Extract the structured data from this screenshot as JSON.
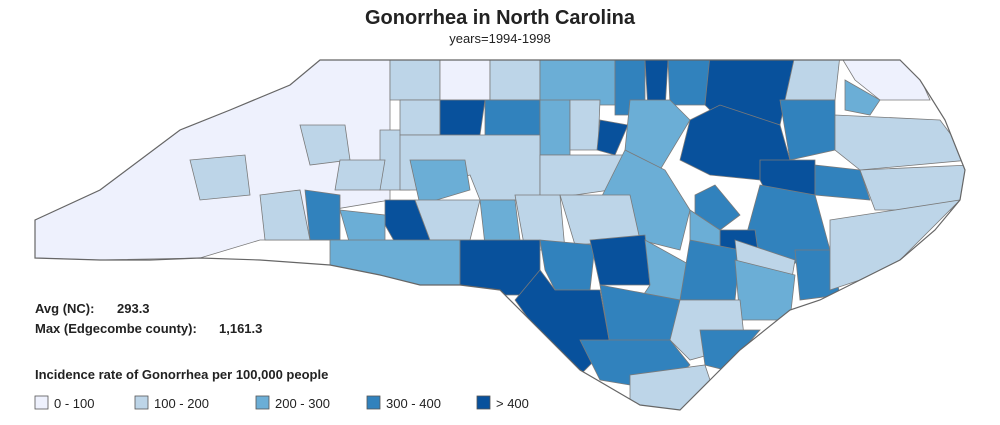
{
  "header": {
    "title": "Gonorrhea in North Carolina",
    "subtitle": "years=1994-1998"
  },
  "stats": {
    "avg_label": "Avg (NC):",
    "avg_value": 293.3,
    "max_label": "Max (Edgecombe county):",
    "max_value": {
      "value": 1161.3,
      "label": "1,161.3"
    }
  },
  "legend": {
    "title": "Incidence rate of Gonorrhea per 100,000 people",
    "items": [
      {
        "label": "0 - 100",
        "color": "#eef1fd"
      },
      {
        "label": "100 - 200",
        "color": "#bdd5e8"
      },
      {
        "label": "200 - 300",
        "color": "#6baed6"
      },
      {
        "label": "300 - 400",
        "color": "#3182bd"
      },
      {
        "label": "> 400",
        "color": "#08519c"
      }
    ]
  }
}
